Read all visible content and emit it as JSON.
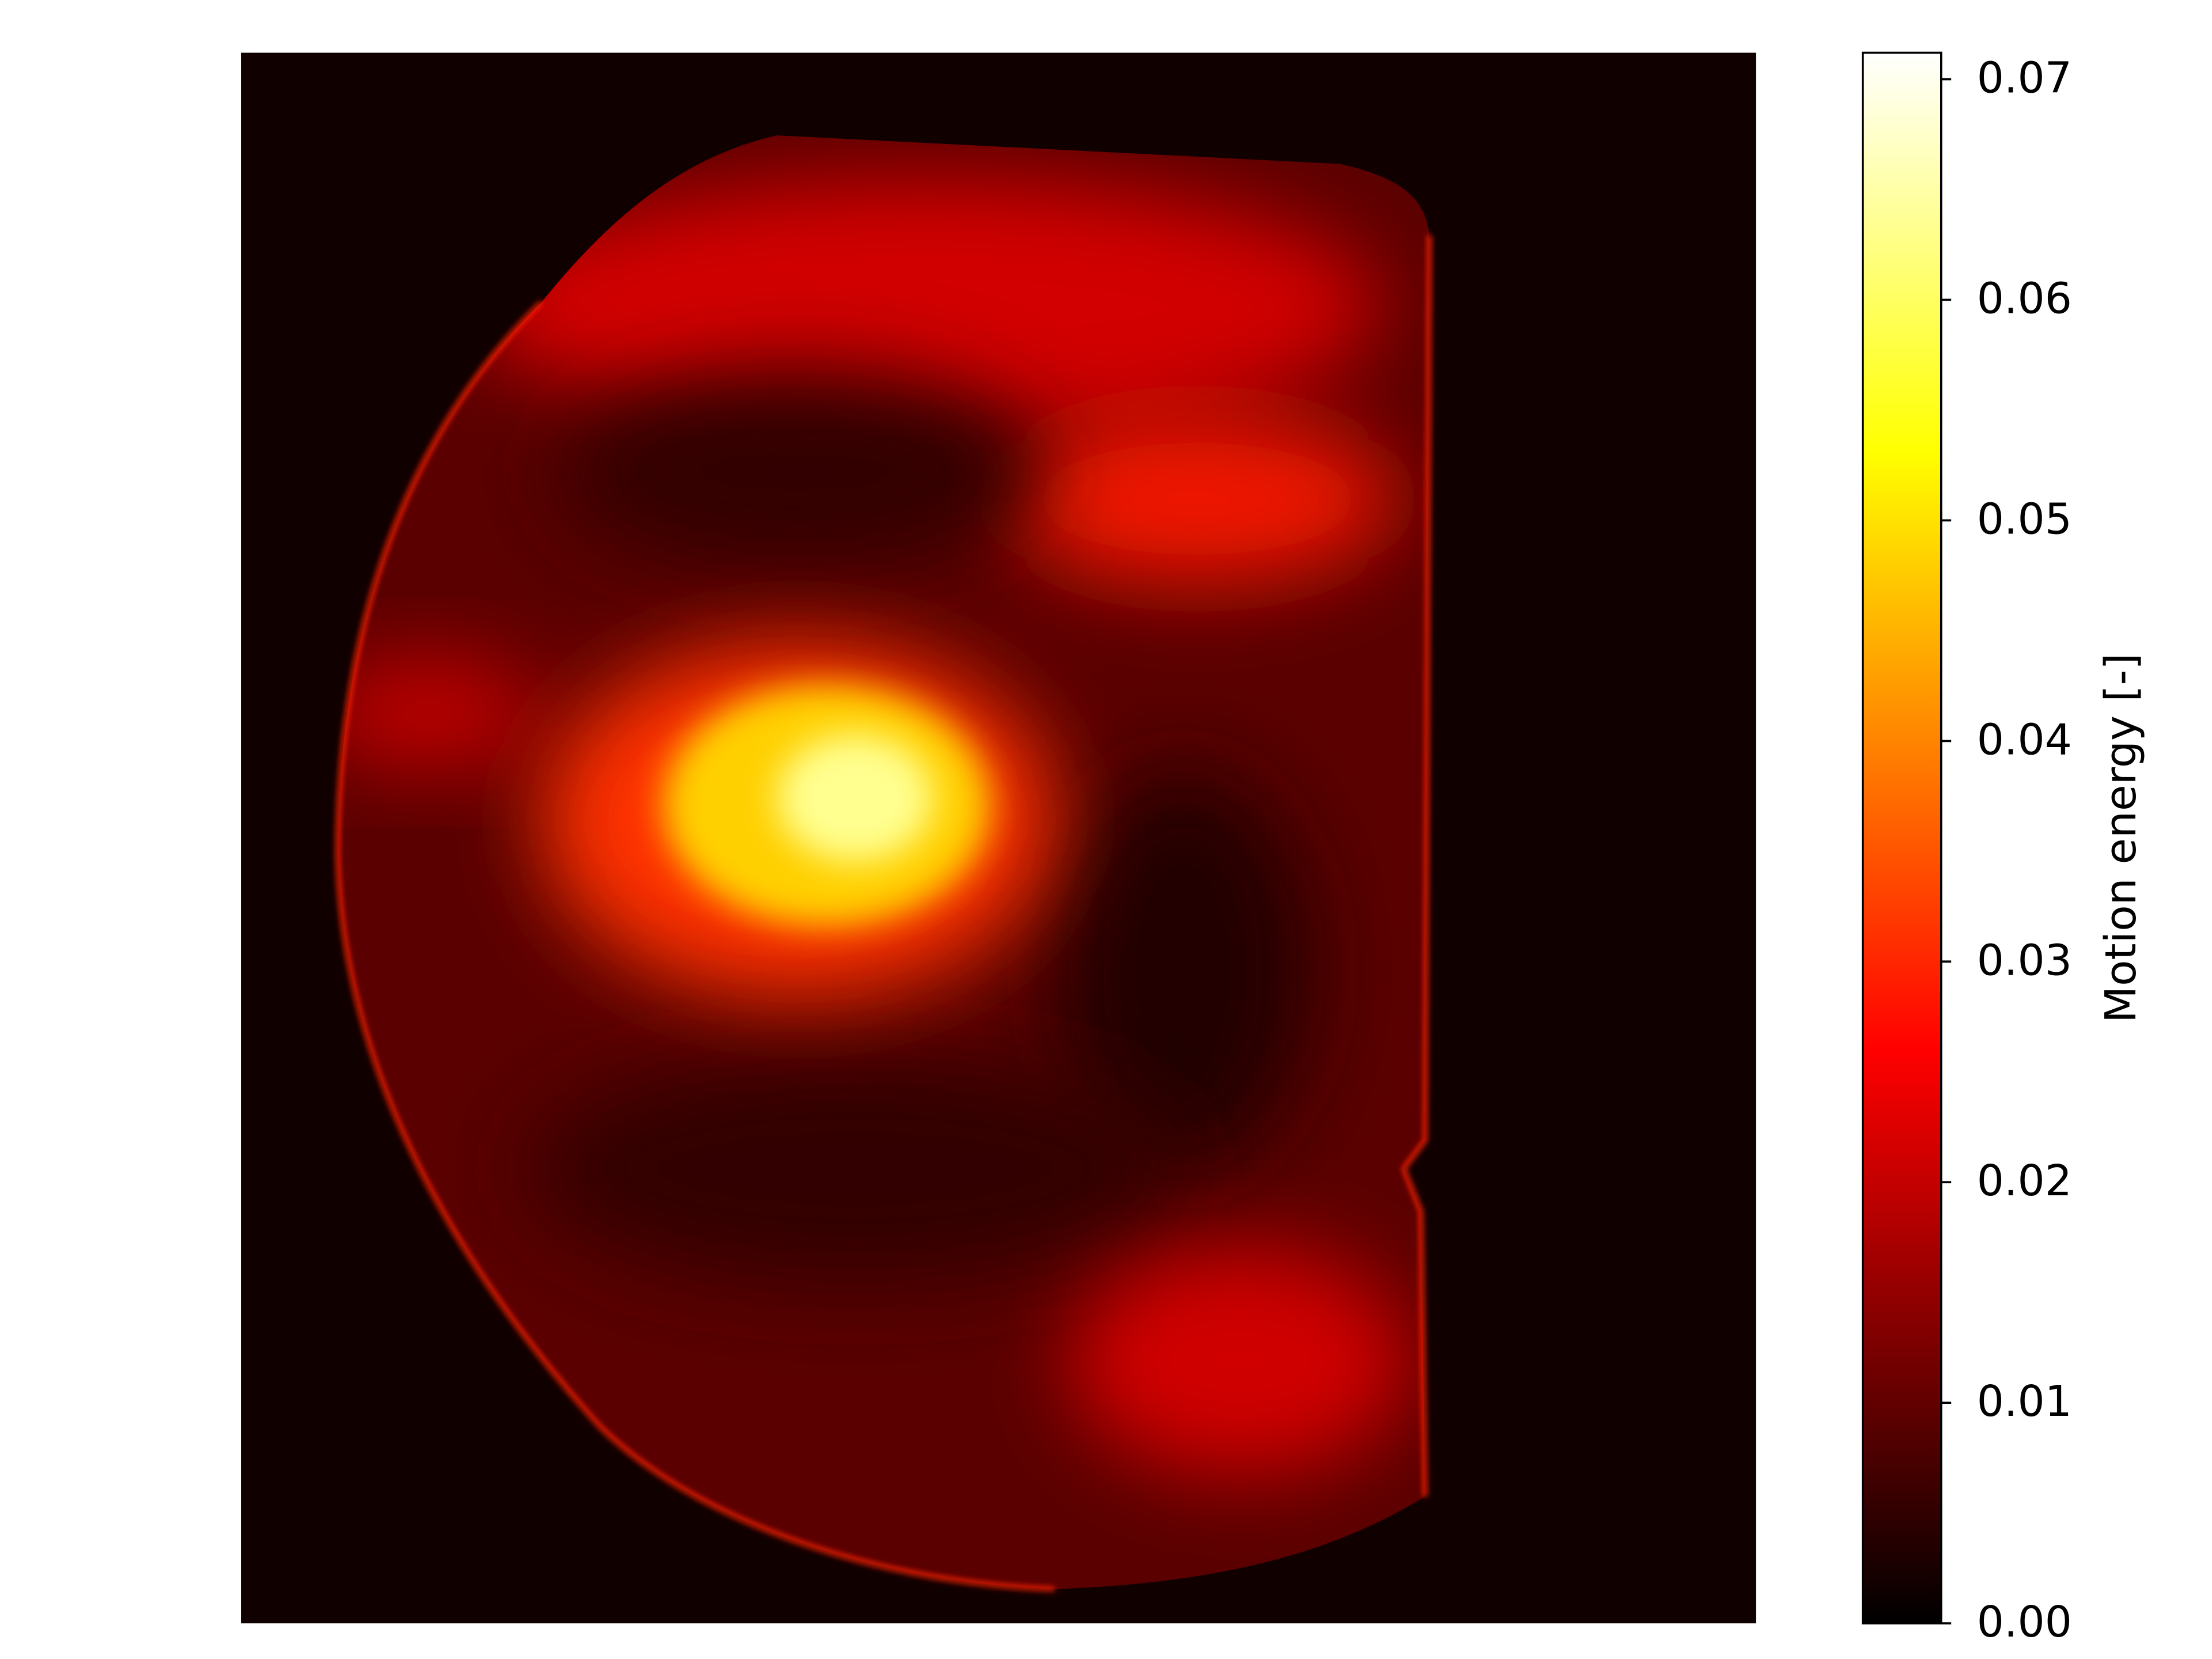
{
  "chart_data": {
    "type": "heatmap",
    "colormap": "hot",
    "colorbar": {
      "label": "Motion energy [-]",
      "lim": [
        0,
        0.0712
      ],
      "ticks": [
        {
          "value": 0,
          "label": "0.00"
        },
        0.01,
        0.02,
        0.03,
        0.04,
        0.05,
        0.06,
        0.07
      ]
    }
  }
}
